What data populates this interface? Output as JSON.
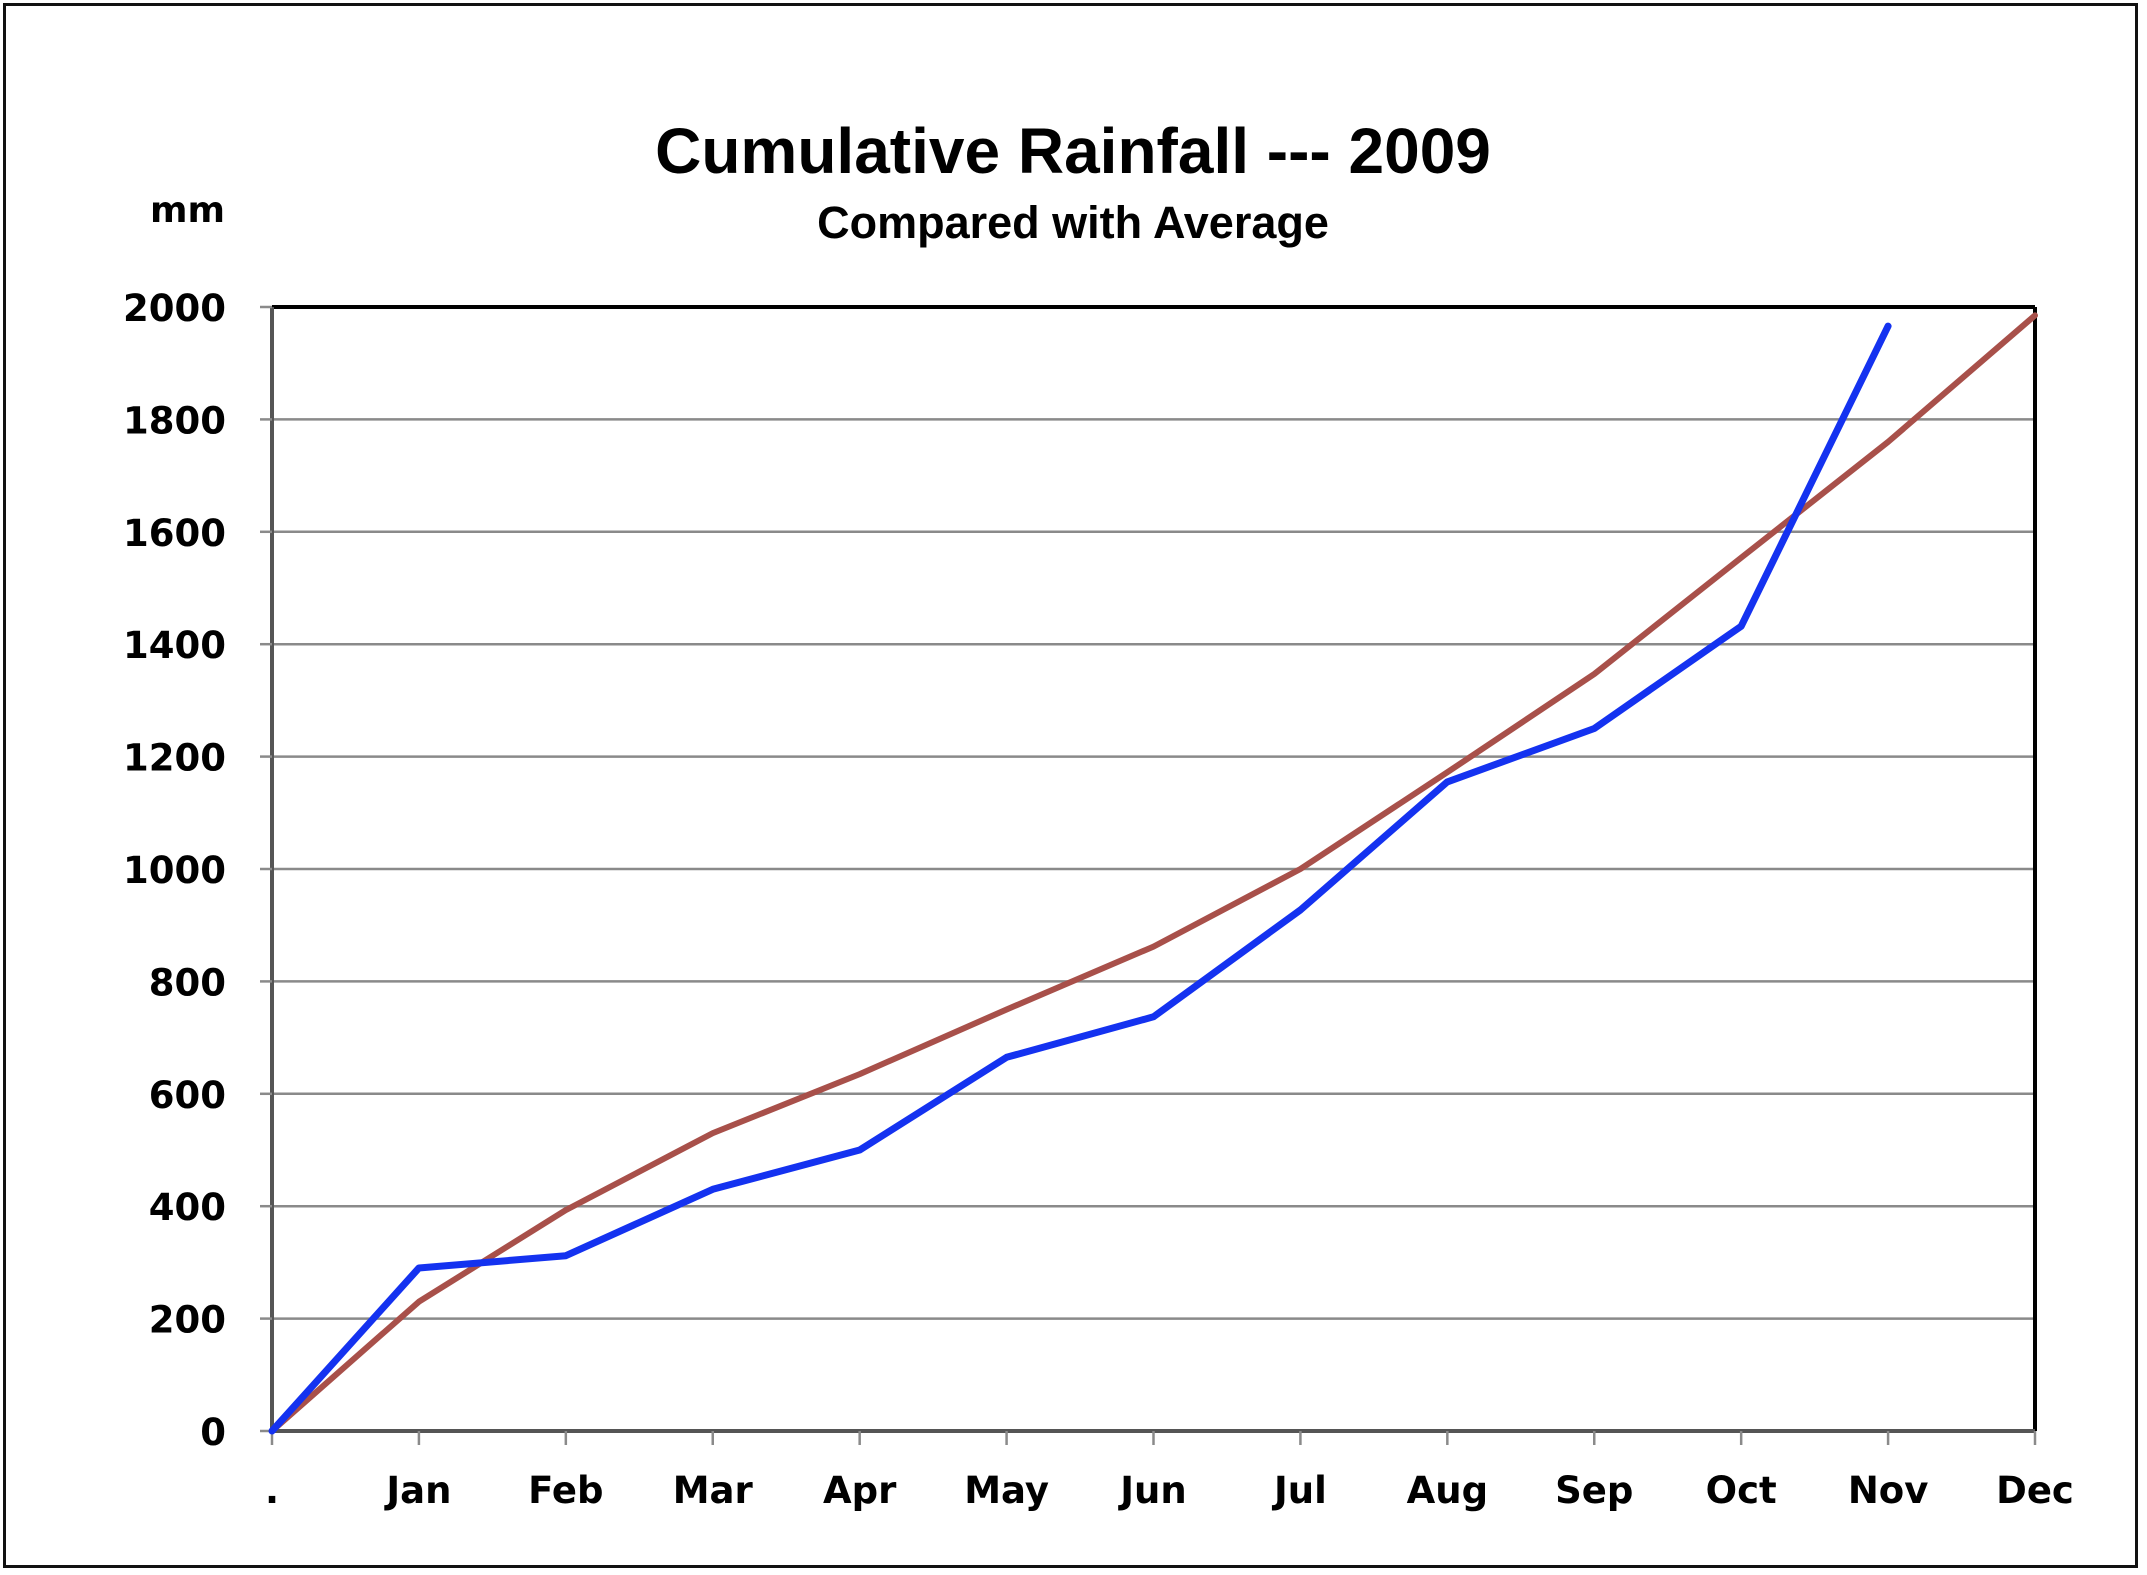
{
  "chart_data": {
    "type": "line",
    "title": "Cumulative Rainfall --- 2009",
    "subtitle": "Compared with Average",
    "ylabel": "mm",
    "xlabel": "",
    "categories": [
      ".",
      "Jan",
      "Feb",
      "Mar",
      "Apr",
      "May",
      "Jun",
      "Jul",
      "Aug",
      "Sep",
      "Oct",
      "Nov",
      "Dec"
    ],
    "ylim": [
      0,
      2000
    ],
    "yticks": [
      0,
      200,
      400,
      600,
      800,
      1000,
      1200,
      1400,
      1600,
      1800,
      2000
    ],
    "ytick_labels": [
      "0",
      "200",
      "400",
      "600",
      "800",
      "1000",
      "1200",
      "1400",
      "1600",
      "1800",
      "2000"
    ],
    "grid": true,
    "legend": "none",
    "series": [
      {
        "name": "2009",
        "color": "#1432F0",
        "values": [
          0,
          290,
          312,
          430,
          500,
          665,
          737,
          927,
          1155,
          1250,
          1432,
          1966,
          null
        ]
      },
      {
        "name": "Average",
        "color": "#A8504A",
        "values": [
          0,
          230,
          393,
          530,
          635,
          750,
          862,
          1000,
          1172,
          1347,
          1554,
          1760,
          1985
        ]
      }
    ]
  }
}
